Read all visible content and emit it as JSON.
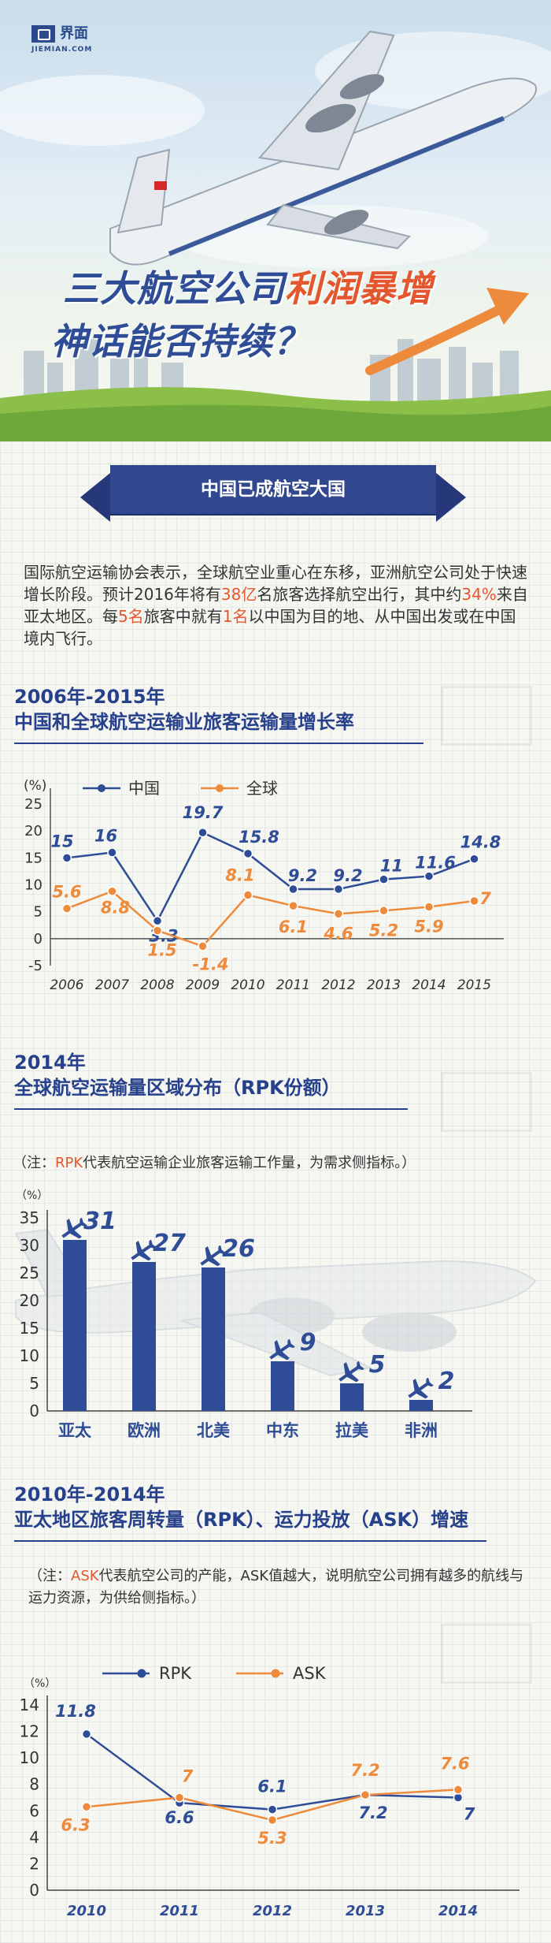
{
  "logo": {
    "name": "界面",
    "sub": "JIEMIAN.COM"
  },
  "hero": {
    "title_part1": "三大航空公司",
    "title_highlight": "利润暴增",
    "title_line2": "神话能否持续？"
  },
  "banner": "中国已成航空大国",
  "intro": {
    "p1": "国际航空运输协会表示，全球航空业重心在东移，亚洲航空公司处于快速增长阶段。预计2016年将有",
    "h1": "38亿",
    "p2": "名旅客选择航空出行，其中约",
    "h2": "34%",
    "p3": "来自亚太地区。每",
    "h3": "5名",
    "p4": "旅客中就有",
    "h4": "1名",
    "p5": "以中国为目的地、从中国出发或在中国境内飞行。"
  },
  "section1": {
    "title_line1": "2006年-2015年",
    "title_line2": "中国和全球航空运输业旅客运输量增长率"
  },
  "section2": {
    "title_line1": "2014年",
    "title_line2": "全球航空运输量区域分布（RPK份额）"
  },
  "section2_note": {
    "prefix": "（注：",
    "highlight": "RPK",
    "rest": "代表航空运输企业旅客运输工作量，为需求侧指标。）"
  },
  "section3": {
    "title_line1": "2010年-2014年",
    "title_line2": "亚太地区旅客周转量（RPK）、运力投放（ASK）增速"
  },
  "section3_note": {
    "prefix": "（注：",
    "highlight": "ASK",
    "rest": "代表航空公司的产能，ASK值越大，说明航空公司拥有越多的航线与运力资源，为供给侧指标。）"
  },
  "colors": {
    "navy": "#2f4c96",
    "orange": "#ee8a3c",
    "accent_red": "#e4572e"
  },
  "chart_data": [
    {
      "type": "line",
      "unit": "(%)",
      "x": [
        "2006",
        "2007",
        "2008",
        "2009",
        "2010",
        "2011",
        "2012",
        "2013",
        "2014",
        "2015"
      ],
      "series": [
        {
          "name": "中国",
          "values": [
            15,
            16,
            3.3,
            19.7,
            15.8,
            9.2,
            9.2,
            11,
            11.6,
            14.8
          ],
          "labels": [
            "15",
            "16",
            "3.3",
            "19.7",
            "15.8",
            "9.2",
            "9.2",
            "11",
            "11.6",
            "14.8"
          ]
        },
        {
          "name": "全球",
          "values": [
            5.6,
            8.8,
            1.5,
            -1.4,
            8.1,
            6.1,
            4.6,
            5.2,
            5.9,
            7
          ],
          "labels": [
            "5.6",
            "8.8",
            "1.5",
            "-1.4",
            "8.1",
            "6.1",
            "4.6",
            "5.2",
            "5.9",
            "7"
          ]
        }
      ],
      "yticks": [
        "25",
        "20",
        "15",
        "10",
        "5",
        "0",
        "-5"
      ],
      "ylim": [
        -5,
        25
      ]
    },
    {
      "type": "bar",
      "unit": "（%）",
      "categories": [
        "亚太",
        "欧洲",
        "北美",
        "中东",
        "拉美",
        "非洲"
      ],
      "values": [
        31,
        27,
        26,
        9,
        5,
        2
      ],
      "labels": [
        "31",
        "27",
        "26",
        "9",
        "5",
        "2"
      ],
      "yticks": [
        "35",
        "30",
        "25",
        "20",
        "15",
        "10",
        "5",
        "0"
      ],
      "ylim": [
        0,
        35
      ]
    },
    {
      "type": "line",
      "unit": "（%）",
      "x": [
        "2010",
        "2011",
        "2012",
        "2013",
        "2014"
      ],
      "series": [
        {
          "name": "RPK",
          "values": [
            11.8,
            6.6,
            6.1,
            7.2,
            7
          ],
          "labels": [
            "11.8",
            "6.6",
            "6.1",
            "7.2",
            "7"
          ]
        },
        {
          "name": "ASK",
          "values": [
            6.3,
            7,
            5.3,
            7.2,
            7.6
          ],
          "labels": [
            "6.3",
            "7",
            "5.3",
            "7.2",
            "7.6"
          ]
        }
      ],
      "yticks": [
        "14",
        "12",
        "10",
        "8",
        "6",
        "4",
        "2",
        "0"
      ],
      "ylim": [
        0,
        14
      ]
    }
  ]
}
